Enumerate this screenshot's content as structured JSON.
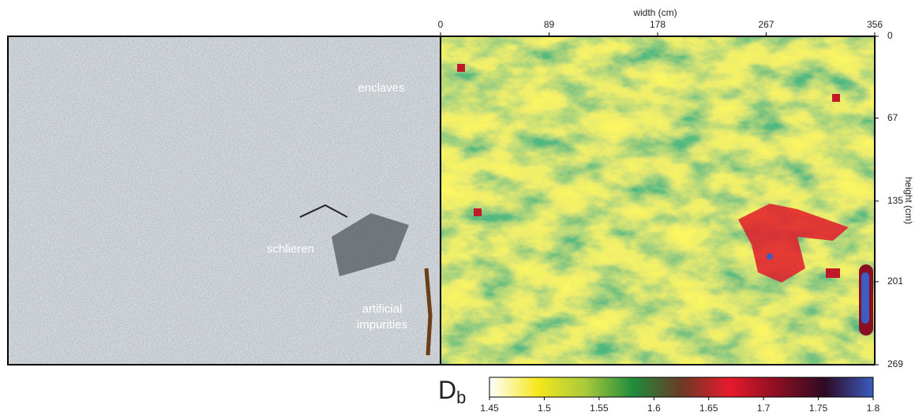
{
  "chart_data": {
    "type": "heatmap",
    "annotations": [
      "enclaves",
      "schlieren",
      "artificial",
      "impurities"
    ],
    "xlabel": "width (cm)",
    "ylabel": "height (cm)",
    "xlim": [
      0,
      356
    ],
    "xticks": [
      0,
      89,
      178,
      267,
      356
    ],
    "ylim": [
      0,
      269
    ],
    "yticks": [
      0,
      67,
      135,
      201,
      269
    ],
    "colorbar": {
      "label": "D",
      "label_sub": "b",
      "lim": [
        1.45,
        1.8
      ],
      "ticks": [
        1.45,
        1.5,
        1.55,
        1.6,
        1.65,
        1.7,
        1.75,
        1.8
      ],
      "colors": [
        "#ffffff",
        "#f6e81c",
        "#a9c93b",
        "#1f8b3d",
        "#6b3a25",
        "#e8192c",
        "#8a0f22",
        "#2e0a24",
        "#3b5cc0"
      ]
    }
  }
}
